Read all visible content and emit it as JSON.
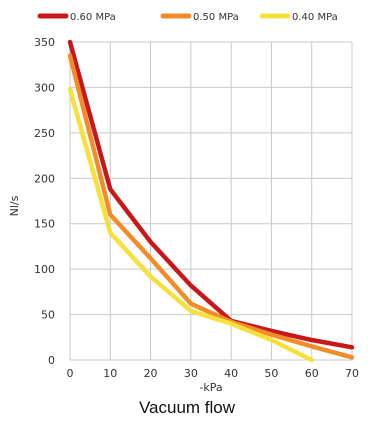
{
  "chart_data": {
    "type": "line",
    "title": "",
    "xlabel": "-kPa",
    "ylabel": "Nl/s",
    "xlim": [
      0,
      70
    ],
    "ylim": [
      0,
      350
    ],
    "x_ticks": [
      0,
      10,
      20,
      30,
      40,
      50,
      60,
      70
    ],
    "y_ticks": [
      0,
      50,
      100,
      150,
      200,
      250,
      300,
      350
    ],
    "grid": true,
    "legend": "top",
    "series": [
      {
        "name": "0.60 MPa",
        "color": "#c8181c",
        "x": [
          0,
          10,
          20,
          30,
          40,
          50,
          60,
          70
        ],
        "y": [
          350,
          188,
          130,
          82,
          43,
          32,
          22,
          14
        ]
      },
      {
        "name": "0.50 MPa",
        "color": "#f28c28",
        "x": [
          0,
          10,
          20,
          30,
          40,
          50,
          60,
          70
        ],
        "y": [
          335,
          160,
          112,
          62,
          42,
          28,
          15,
          3
        ]
      },
      {
        "name": "0.40 MPa",
        "color": "#f7e03c",
        "x": [
          0,
          10,
          20,
          30,
          40,
          50,
          60
        ],
        "y": [
          298,
          140,
          92,
          54,
          40,
          22,
          0
        ]
      }
    ]
  },
  "caption": "Vacuum flow"
}
